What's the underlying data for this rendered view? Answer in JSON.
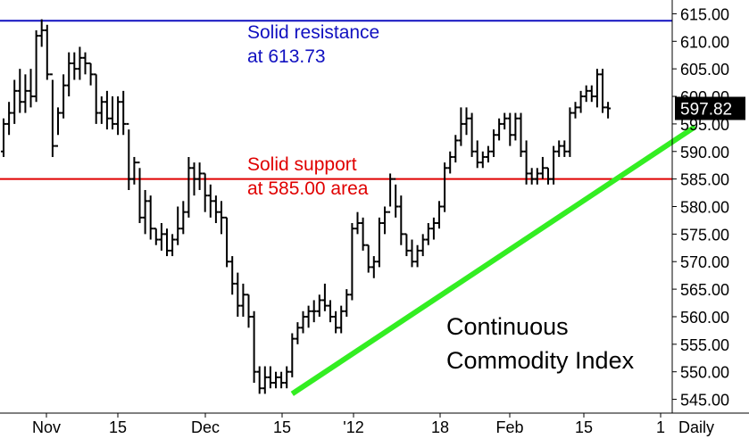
{
  "chart_data": {
    "type": "bar",
    "style": "ohlc",
    "title": "Continuous Commodity Index",
    "title_lines": [
      "Continuous",
      "Commodity Index"
    ],
    "period_label": "Daily",
    "y_axis": {
      "range": [
        542.5,
        617.5
      ],
      "ticks": [
        "615.00",
        "610.00",
        "605.00",
        "600.00",
        "595.00",
        "590.00",
        "585.00",
        "580.00",
        "575.00",
        "570.00",
        "565.00",
        "560.00",
        "555.00",
        "550.00",
        "545.00"
      ],
      "position": "right"
    },
    "x_axis": {
      "ticks": [
        "Nov",
        "15",
        "Dec",
        "15",
        "'12",
        "18",
        "Feb",
        "15",
        "1"
      ]
    },
    "last_price": {
      "value": 597.82,
      "label": "597.82"
    },
    "levels": [
      {
        "name": "resistance",
        "value": 613.73,
        "color": "#1010c0",
        "label_lines": [
          "Solid resistance",
          "at 613.73"
        ]
      },
      {
        "name": "support",
        "value": 585.0,
        "color": "#e00000",
        "label_lines": [
          "Solid support",
          "at 585.00 area"
        ]
      }
    ],
    "trendline": {
      "color": "#33ee22",
      "points": [
        {
          "bar": 53,
          "value": 546.0
        },
        {
          "bar": 127,
          "value": 594.5
        }
      ]
    },
    "bars": [
      [
        590.0,
        596.0,
        589.0,
        595.0
      ],
      [
        595.0,
        599.0,
        593.0,
        597.0
      ],
      [
        597.0,
        603.0,
        595.0,
        601.0
      ],
      [
        601.0,
        605.0,
        597.0,
        599.0
      ],
      [
        599.0,
        604.0,
        597.0,
        601.0
      ],
      [
        601.0,
        605.0,
        598.0,
        600.0
      ],
      [
        600.0,
        612.0,
        599.0,
        611.0
      ],
      [
        611.0,
        614.0,
        609.0,
        612.0
      ],
      [
        612.0,
        613.0,
        603.0,
        604.0
      ],
      [
        604.0,
        603.0,
        589.0,
        591.0
      ],
      [
        591.0,
        598.0,
        593.0,
        597.0
      ],
      [
        597.0,
        604.0,
        596.0,
        602.0
      ],
      [
        602.0,
        608.0,
        600.0,
        606.0
      ],
      [
        606.0,
        608.0,
        603.0,
        605.0
      ],
      [
        605.0,
        609.0,
        603.0,
        607.0
      ],
      [
        607.0,
        608.0,
        604.0,
        606.0
      ],
      [
        606.0,
        606.0,
        602.0,
        604.0
      ],
      [
        604.0,
        604.0,
        595.0,
        597.0
      ],
      [
        597.0,
        600.0,
        595.0,
        599.0
      ],
      [
        599.0,
        601.0,
        594.0,
        596.0
      ],
      [
        596.0,
        600.0,
        594.0,
        595.0
      ],
      [
        595.0,
        600.0,
        593.0,
        599.0
      ],
      [
        599.0,
        601.0,
        593.0,
        595.0
      ],
      [
        595.0,
        594.0,
        583.0,
        585.0
      ],
      [
        585.0,
        589.0,
        584.0,
        588.0
      ],
      [
        588.0,
        587.0,
        577.0,
        578.0
      ],
      [
        578.0,
        583.0,
        575.0,
        581.0
      ],
      [
        581.0,
        582.0,
        574.0,
        576.0
      ],
      [
        576.0,
        576.0,
        573.0,
        574.0
      ],
      [
        574.0,
        577.0,
        572.0,
        575.0
      ],
      [
        575.0,
        576.0,
        571.0,
        572.0
      ],
      [
        572.0,
        575.0,
        571.0,
        574.0
      ],
      [
        574.0,
        580.0,
        573.0,
        576.0
      ],
      [
        576.0,
        581.0,
        575.0,
        579.0
      ],
      [
        579.0,
        589.0,
        578.0,
        587.0
      ],
      [
        587.0,
        588.0,
        582.0,
        585.0
      ],
      [
        585.0,
        588.0,
        583.0,
        586.0
      ],
      [
        586.0,
        586.0,
        579.0,
        582.0
      ],
      [
        582.0,
        584.0,
        578.0,
        581.0
      ],
      [
        581.0,
        582.0,
        577.0,
        579.0
      ],
      [
        579.0,
        581.0,
        575.0,
        578.0
      ],
      [
        578.0,
        578.0,
        569.0,
        570.0
      ],
      [
        570.0,
        571.0,
        564.0,
        566.0
      ],
      [
        566.0,
        568.0,
        560.0,
        562.0
      ],
      [
        562.0,
        566.0,
        560.0,
        564.0
      ],
      [
        564.0,
        564.0,
        558.0,
        560.0
      ],
      [
        560.0,
        561.0,
        548.0,
        550.0
      ],
      [
        550.0,
        551.0,
        546.0,
        547.0
      ],
      [
        547.0,
        551.0,
        546.0,
        549.0
      ],
      [
        549.0,
        551.0,
        547.0,
        548.0
      ],
      [
        548.0,
        550.0,
        547.0,
        549.0
      ],
      [
        549.0,
        550.0,
        547.0,
        548.0
      ],
      [
        548.0,
        551.0,
        547.0,
        550.0
      ],
      [
        550.0,
        557.0,
        549.0,
        556.0
      ],
      [
        556.0,
        559.0,
        555.0,
        558.0
      ],
      [
        558.0,
        561.0,
        557.0,
        560.0
      ],
      [
        560.0,
        562.0,
        558.0,
        561.0
      ],
      [
        561.0,
        563.0,
        559.0,
        561.0
      ],
      [
        561.0,
        564.0,
        560.0,
        563.0
      ],
      [
        563.0,
        566.0,
        561.0,
        562.0
      ],
      [
        562.0,
        563.0,
        559.0,
        560.0
      ],
      [
        560.0,
        561.0,
        557.0,
        558.0
      ],
      [
        558.0,
        562.0,
        557.0,
        561.0
      ],
      [
        561.0,
        565.0,
        560.0,
        564.0
      ],
      [
        564.0,
        577.0,
        563.0,
        576.0
      ],
      [
        576.0,
        579.0,
        575.0,
        577.0
      ],
      [
        577.0,
        578.0,
        572.0,
        573.0
      ],
      [
        573.0,
        573.0,
        568.0,
        569.0
      ],
      [
        569.0,
        571.0,
        567.0,
        570.0
      ],
      [
        570.0,
        578.0,
        569.0,
        577.0
      ],
      [
        577.0,
        580.0,
        575.0,
        579.0
      ],
      [
        579.0,
        586.0,
        580.0,
        585.0
      ],
      [
        585.0,
        584.0,
        578.0,
        580.0
      ],
      [
        580.0,
        582.0,
        573.0,
        575.0
      ],
      [
        575.0,
        575.0,
        571.0,
        572.0
      ],
      [
        572.0,
        574.0,
        569.0,
        570.0
      ],
      [
        570.0,
        573.0,
        569.0,
        572.0
      ],
      [
        572.0,
        575.0,
        571.0,
        574.0
      ],
      [
        574.0,
        577.0,
        573.0,
        576.0
      ],
      [
        576.0,
        578.0,
        574.0,
        577.0
      ],
      [
        577.0,
        581.0,
        576.0,
        580.0
      ],
      [
        580.0,
        588.0,
        579.0,
        587.0
      ],
      [
        587.0,
        590.0,
        586.0,
        589.0
      ],
      [
        589.0,
        593.0,
        588.0,
        592.0
      ],
      [
        592.0,
        598.0,
        591.0,
        595.0
      ],
      [
        595.0,
        598.0,
        593.0,
        596.0
      ],
      [
        596.0,
        597.0,
        589.0,
        590.0
      ],
      [
        590.0,
        592.0,
        587.0,
        588.0
      ],
      [
        588.0,
        590.0,
        587.0,
        589.0
      ],
      [
        589.0,
        591.0,
        588.0,
        590.0
      ],
      [
        590.0,
        594.0,
        589.0,
        593.0
      ],
      [
        593.0,
        596.0,
        592.0,
        595.0
      ],
      [
        595.0,
        597.0,
        594.0,
        596.0
      ],
      [
        596.0,
        597.0,
        591.0,
        593.0
      ],
      [
        593.0,
        597.0,
        592.0,
        596.0
      ],
      [
        596.0,
        597.0,
        589.0,
        590.0
      ],
      [
        590.0,
        592.0,
        584.0,
        586.0
      ],
      [
        586.0,
        587.0,
        584.0,
        585.0
      ],
      [
        585.0,
        587.0,
        584.0,
        586.0
      ],
      [
        586.0,
        589.0,
        585.0,
        587.0
      ],
      [
        587.0,
        587.0,
        584.0,
        585.0
      ],
      [
        585.0,
        591.0,
        584.0,
        590.0
      ],
      [
        590.0,
        592.0,
        589.0,
        591.0
      ],
      [
        591.0,
        592.0,
        589.0,
        590.0
      ],
      [
        590.0,
        598.0,
        589.0,
        597.0
      ],
      [
        597.0,
        599.0,
        596.0,
        598.0
      ],
      [
        598.0,
        601.0,
        597.0,
        600.0
      ],
      [
        600.0,
        602.0,
        599.0,
        601.0
      ],
      [
        601.0,
        602.0,
        599.0,
        600.0
      ],
      [
        600.0,
        605.0,
        598.0,
        604.0
      ],
      [
        604.0,
        605.0,
        597.0,
        598.0
      ],
      [
        598.0,
        599.0,
        596.0,
        597.82
      ]
    ]
  }
}
